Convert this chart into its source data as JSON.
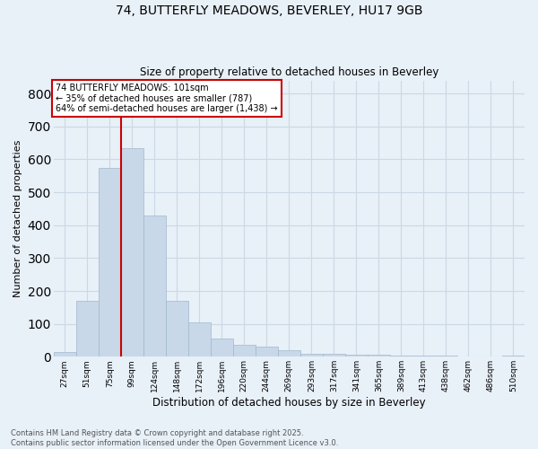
{
  "title_line1": "74, BUTTERFLY MEADOWS, BEVERLEY, HU17 9GB",
  "title_line2": "Size of property relative to detached houses in Beverley",
  "xlabel": "Distribution of detached houses by size in Beverley",
  "ylabel": "Number of detached properties",
  "bar_values": [
    15,
    170,
    575,
    635,
    430,
    170,
    105,
    55,
    35,
    30,
    20,
    10,
    8,
    5,
    5,
    4,
    4,
    3,
    2,
    1,
    4
  ],
  "bin_labels": [
    "27sqm",
    "51sqm",
    "75sqm",
    "99sqm",
    "124sqm",
    "148sqm",
    "172sqm",
    "196sqm",
    "220sqm",
    "244sqm",
    "269sqm",
    "293sqm",
    "317sqm",
    "341sqm",
    "365sqm",
    "389sqm",
    "413sqm",
    "438sqm",
    "462sqm",
    "486sqm",
    "510sqm"
  ],
  "bar_color": "#c8d8e8",
  "bar_edge_color": "#a0b8cc",
  "vline_x_idx": 3,
  "vline_color": "#cc0000",
  "annotation_text": "74 BUTTERFLY MEADOWS: 101sqm\n← 35% of detached houses are smaller (787)\n64% of semi-detached houses are larger (1,438) →",
  "annotation_box_color": "#ffffff",
  "annotation_box_edge": "#cc0000",
  "ylim": [
    0,
    840
  ],
  "yticks": [
    0,
    100,
    200,
    300,
    400,
    500,
    600,
    700,
    800
  ],
  "grid_color": "#ccd8e4",
  "bg_color": "#e8f0f8",
  "footer_text": "Contains HM Land Registry data © Crown copyright and database right 2025.\nContains public sector information licensed under the Open Government Licence v3.0."
}
